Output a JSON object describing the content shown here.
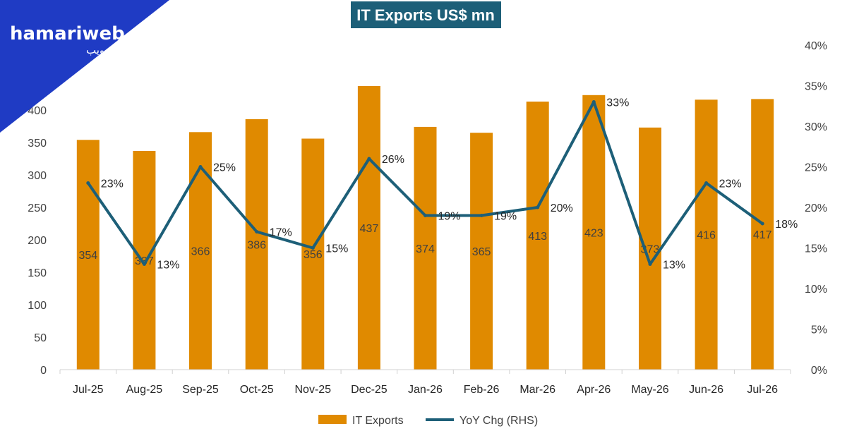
{
  "brand": {
    "name": "hamariweb",
    "urdu": "ہماری ویب",
    "color": "#1f3bc4"
  },
  "colors": {
    "bar": "#e08a00",
    "line": "#1d5f78",
    "title_bg": "#1d5f78",
    "axis": "#d0d0d0"
  },
  "chart_data": {
    "type": "bar",
    "title": "IT Exports US$ mn",
    "categories": [
      "Jul-25",
      "Aug-25",
      "Sep-25",
      "Oct-25",
      "Nov-25",
      "Dec-25",
      "Jan-26",
      "Feb-26",
      "Mar-26",
      "Apr-26",
      "May-26",
      "Jun-26",
      "Jul-26"
    ],
    "series": [
      {
        "name": "IT Exports",
        "type": "bar",
        "axis": "left",
        "values": [
          354,
          337,
          366,
          386,
          356,
          437,
          374,
          365,
          413,
          423,
          373,
          416,
          417
        ]
      },
      {
        "name": "YoY Chg (RHS)",
        "type": "line",
        "axis": "right",
        "values": [
          23,
          13,
          25,
          17,
          15,
          26,
          19,
          19,
          20,
          33,
          13,
          23,
          18
        ],
        "labels": [
          "23%",
          "13%",
          "25%",
          "17%",
          "15%",
          "26%",
          "19%",
          "19%",
          "20%",
          "33%",
          "13%",
          "23%",
          "18%"
        ]
      }
    ],
    "y_left": {
      "min": 0,
      "max": 500,
      "ticks": [
        "0",
        "50",
        "100",
        "150",
        "200",
        "250",
        "300",
        "350",
        "400"
      ]
    },
    "y_right": {
      "min": 0,
      "max": 40,
      "ticks": [
        "0%",
        "5%",
        "10%",
        "15%",
        "20%",
        "25%",
        "30%",
        "35%",
        "40%"
      ]
    },
    "legend": [
      "IT Exports",
      "YoY Chg (RHS)"
    ],
    "legend_position": "bottom",
    "grid": false
  }
}
